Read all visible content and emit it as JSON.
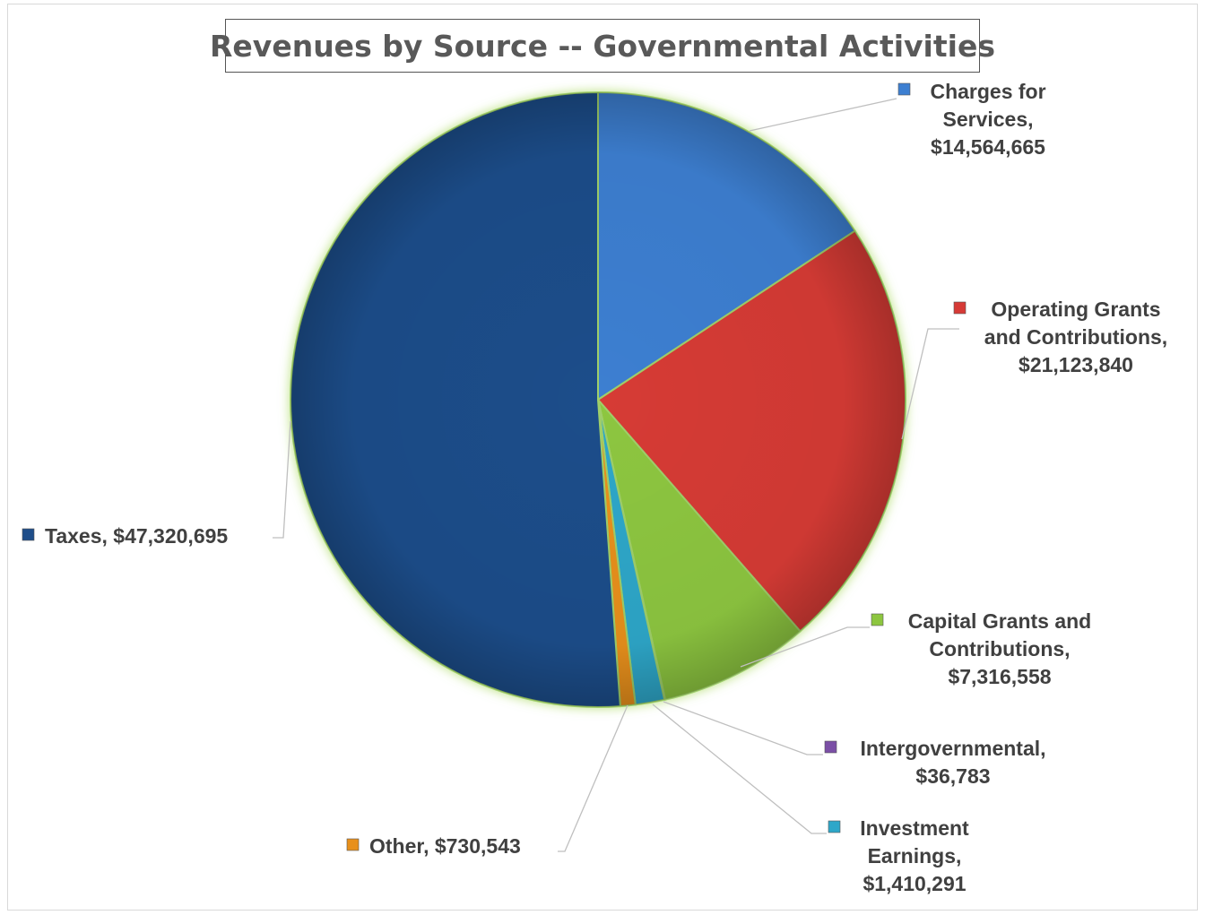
{
  "chart_data": {
    "type": "pie",
    "title": "Revenues by Source -- Governmental Activities",
    "slices": [
      {
        "key": "charges",
        "name": "Charges for Services",
        "value": 14564665,
        "display": "$14,564,665",
        "color": "#3d7fd1",
        "label_lines": [
          "Charges for",
          "Services,",
          "$14,564,665"
        ]
      },
      {
        "key": "operating",
        "name": "Operating Grants and Contributions",
        "value": 21123840,
        "display": "$21,123,840",
        "color": "#d63a36",
        "label_lines": [
          "Operating Grants",
          "and Contributions,",
          "$21,123,840"
        ]
      },
      {
        "key": "capital",
        "name": "Capital Grants and Contributions",
        "value": 7316558,
        "display": "$7,316,558",
        "color": "#8dc63f",
        "label_lines": [
          "Capital Grants and",
          "Contributions,",
          "$7,316,558"
        ]
      },
      {
        "key": "intergov",
        "name": "Intergovernmental",
        "value": 36783,
        "display": "$36,783",
        "color": "#7b4fa6",
        "label_lines": [
          "Intergovernmental,",
          "$36,783"
        ]
      },
      {
        "key": "investment",
        "name": "Investment Earnings",
        "value": 1410291,
        "display": "$1,410,291",
        "color": "#2ea7c9",
        "label_lines": [
          "Investment",
          "Earnings,",
          "$1,410,291"
        ]
      },
      {
        "key": "other",
        "name": "Other",
        "value": 730543,
        "display": "$730,543",
        "color": "#e8901c",
        "label_lines": [
          "Other,  $730,543"
        ]
      },
      {
        "key": "taxes",
        "name": "Taxes",
        "value": 47320695,
        "display": "$47,320,695",
        "color": "#1f4e8a",
        "label_lines": [
          "Taxes,  $47,320,695"
        ]
      }
    ]
  }
}
